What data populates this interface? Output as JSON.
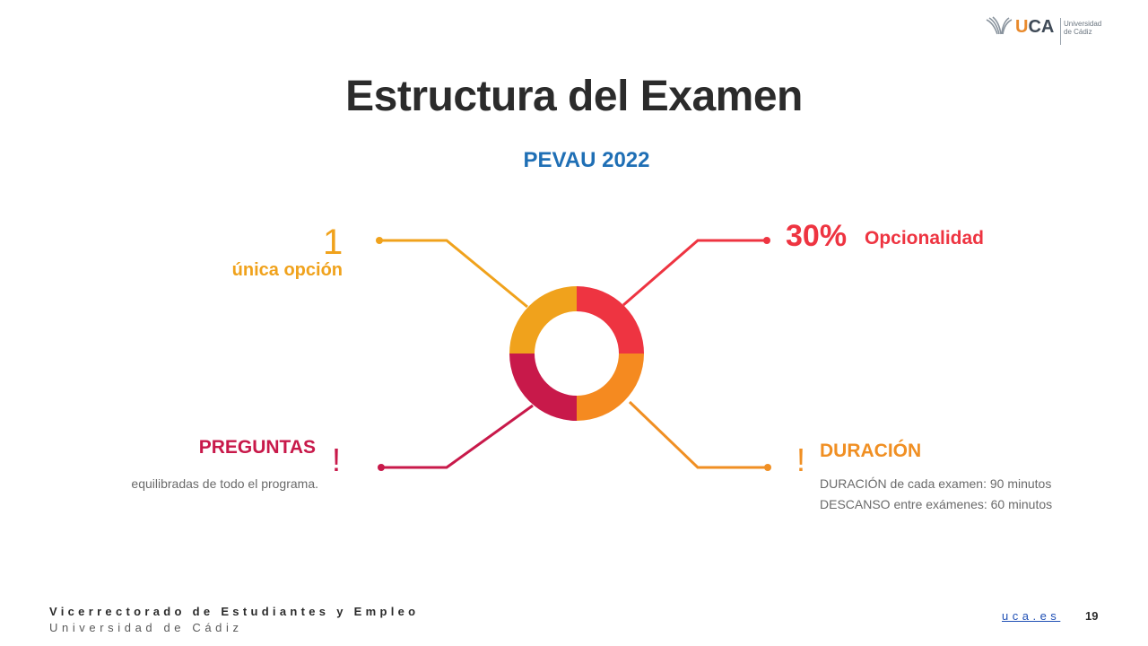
{
  "logo": {
    "brand_u": "U",
    "brand_rest": "CA",
    "name": "Universidad\nde Cádiz"
  },
  "slide": {
    "title": "Estructura del Examen",
    "subtitle": "PEVAU 2022"
  },
  "items": {
    "top_left": {
      "big": "1",
      "label": "única opción",
      "color": "#f0a21c"
    },
    "top_right": {
      "big": "30%",
      "label": "Opcionalidad",
      "color": "#ee3441"
    },
    "bottom_left": {
      "mark": "!",
      "label": "PREGUNTAS",
      "desc": "equilibradas de todo el programa.",
      "color": "#c8194a"
    },
    "bottom_right": {
      "mark": "!",
      "label": "DURACIÓN",
      "line1": "DURACIÓN de cada examen: 90 minutos",
      "line2": "DESCANSO entre exámenes: 60 minutos",
      "color": "#f08f23"
    }
  },
  "footer": {
    "org": "Vicerrectorado de Estudiantes y Empleo",
    "univ": "Universidad de Cádiz",
    "link": "uca.es",
    "page": "19"
  },
  "colors": {
    "title": "#2b2b2b",
    "subtitle": "#1f6fb5",
    "ring_top_right": "#ee3441",
    "ring_bottom_right": "#f58a20",
    "ring_bottom_left": "#c8194a",
    "ring_top_left": "#f0a21c"
  }
}
